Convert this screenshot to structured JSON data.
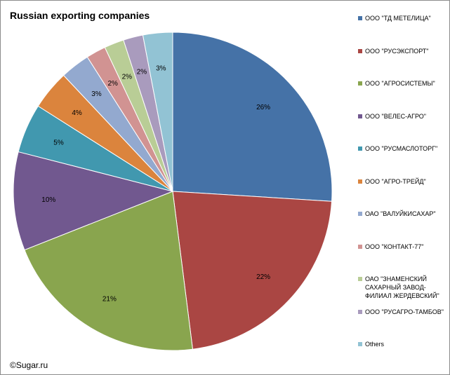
{
  "chart_data": {
    "type": "pie",
    "title": "Russian exporting companies",
    "categories": [
      "ООО \"ТД МЕТЕЛИЦА\"",
      "ООО \"РУСЭКСПОРТ\"",
      "ООО \"АГРОСИСТЕМЫ\"",
      "ООО \"ВЕЛЕС-АГРО\"",
      "ООО \"РУСМАСЛОТОРГ\"",
      "ООО \"АГРО-ТРЕЙД\"",
      "ОАО \"ВАЛУЙКИСАХАР\"",
      "ООО \"КОНТАКТ-77\"",
      "ОАО \"ЗНАМЕНСКИЙ САХАРНЫЙ ЗАВОД-ФИЛИАЛ ЖЕРДЕВСКИЙ\"",
      "ООО \"РУСАГРО-ТАМБОВ\"",
      "Others"
    ],
    "values": [
      26,
      22,
      21,
      10,
      5,
      4,
      3,
      2,
      2,
      2,
      3
    ],
    "labels": [
      "26%",
      "22%",
      "21%",
      "10%",
      "5%",
      "4%",
      "3%",
      "2%",
      "2%",
      "2%",
      "3%"
    ],
    "colors": [
      "#4572a7",
      "#aa4643",
      "#89a54e",
      "#71588f",
      "#4198af",
      "#db843d",
      "#93a9cf",
      "#d19392",
      "#b9cd96",
      "#a99bbd",
      "#92c3d4"
    ],
    "legend_position": "right"
  },
  "copyright": "©Sugar.ru"
}
